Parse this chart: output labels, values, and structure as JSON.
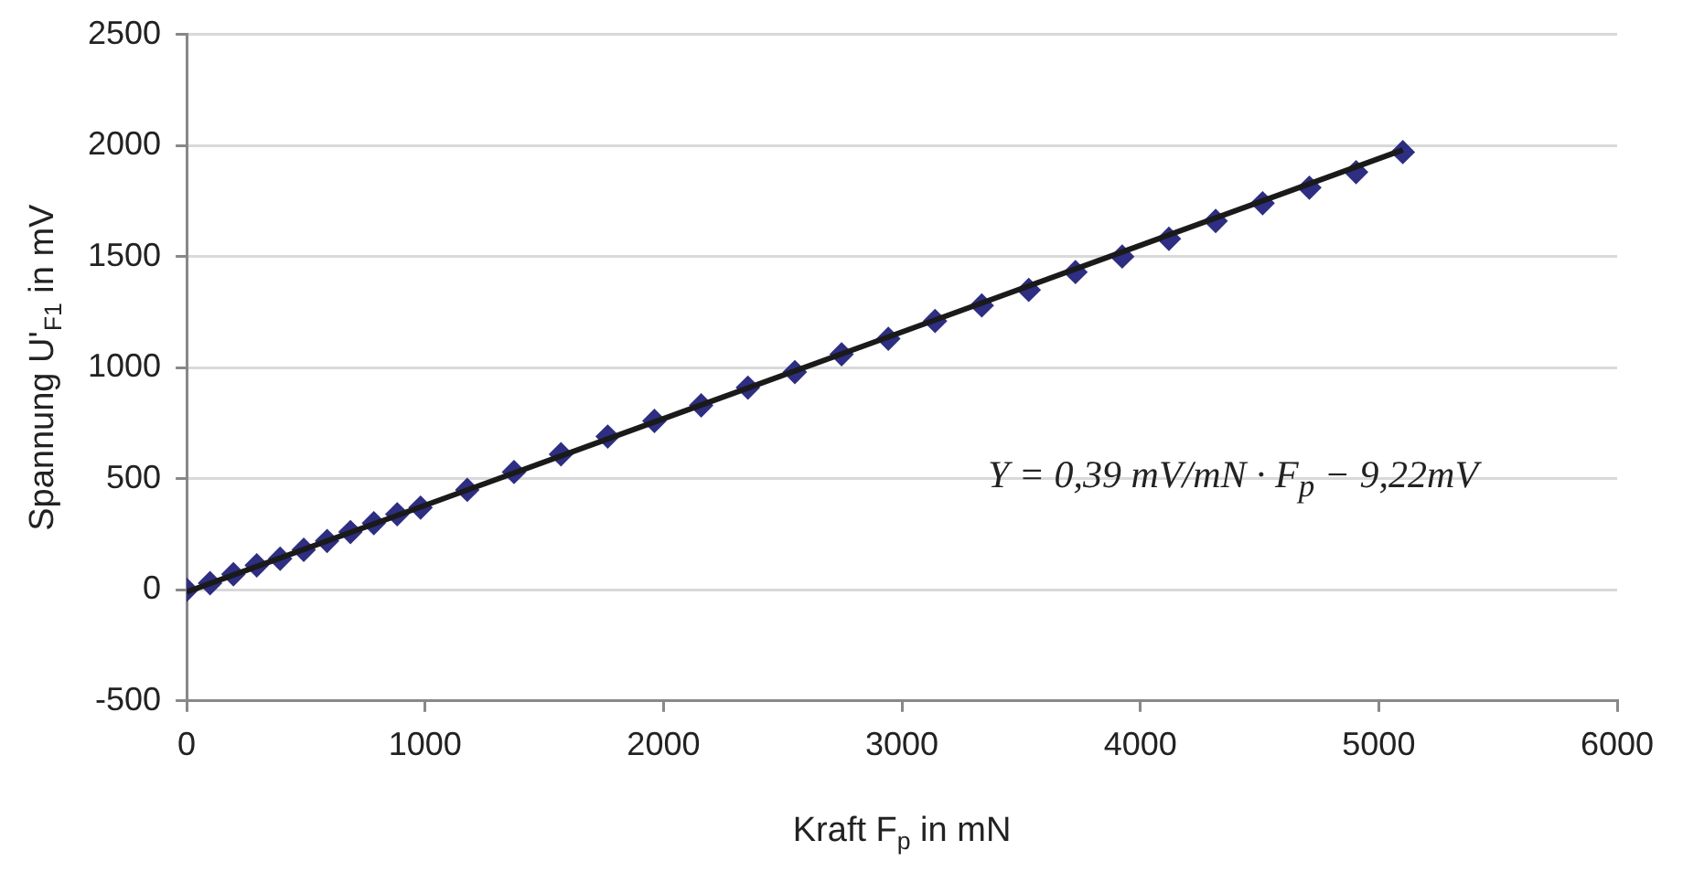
{
  "chart_data": {
    "type": "scatter",
    "xlabel": "Kraft F$_{p}$ in mN",
    "ylabel": "Spannung U'$_{F1}$ in mV",
    "x": [
      0,
      98,
      196,
      294,
      392,
      491,
      589,
      687,
      785,
      883,
      981,
      1177,
      1373,
      1570,
      1766,
      1962,
      2158,
      2354,
      2551,
      2747,
      2943,
      3139,
      3335,
      3532,
      3728,
      3924,
      4120,
      4316,
      4513,
      4709,
      4905,
      5101
    ],
    "series": [
      {
        "type": "scatter",
        "color": "#2e2e82",
        "marker": "diamond",
        "values": [
          0,
          30,
          70,
          110,
          140,
          180,
          220,
          260,
          300,
          340,
          370,
          450,
          530,
          610,
          690,
          760,
          830,
          910,
          980,
          1060,
          1130,
          1210,
          1280,
          1350,
          1430,
          1500,
          1580,
          1660,
          1740,
          1810,
          1880,
          1970
        ]
      },
      {
        "type": "line",
        "color": "#1a1a1a",
        "marker": "none",
        "line_style": "solid",
        "x": [
          0,
          5101
        ],
        "values": [
          -10,
          1980
        ]
      }
    ],
    "annotations": [
      "Y = 0,39 mV/mN · F$_{p}$ − 9,22mV"
    ],
    "xlim": [
      0,
      6000
    ],
    "xticks": [
      0,
      1000,
      2000,
      3000,
      4000,
      5000,
      6000
    ],
    "ylim": [
      -500,
      2500
    ],
    "yticks": [
      -500,
      0,
      500,
      1000,
      1500,
      2000,
      2500
    ],
    "grid": "y",
    "legend": false
  }
}
